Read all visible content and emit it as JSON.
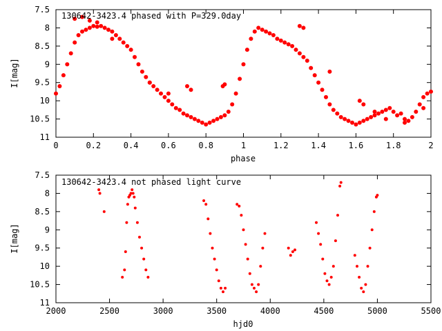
{
  "chart_data": [
    {
      "type": "scatter",
      "title": "130642-3423.4 phased with P=329.0day",
      "xlabel": "phase",
      "ylabel": "I[mag]",
      "xlim": [
        0,
        2
      ],
      "ylim": [
        7.5,
        11
      ],
      "y_inverted": true,
      "marker_color": "#ff0000",
      "x_ticks": [
        "0",
        "0.2",
        "0.4",
        "0.6",
        "0.8",
        "1",
        "1.2",
        "1.4",
        "1.6",
        "1.8",
        "2"
      ],
      "y_ticks": [
        "7.5",
        "8",
        "8.5",
        "9",
        "9.5",
        "10",
        "10.5",
        "11"
      ],
      "series": [
        {
          "x": [
            0.0,
            0.02,
            0.04,
            0.06,
            0.08,
            0.1,
            0.12,
            0.14,
            0.16,
            0.18,
            0.2,
            0.22,
            0.24,
            0.26,
            0.28,
            0.3,
            0.32,
            0.34,
            0.36,
            0.38,
            0.4,
            0.42,
            0.44,
            0.46,
            0.48,
            0.5,
            0.52,
            0.54,
            0.56,
            0.58,
            0.6,
            0.62,
            0.64,
            0.66,
            0.68,
            0.7,
            0.72,
            0.74,
            0.76,
            0.78,
            0.8,
            0.82,
            0.84,
            0.86,
            0.88,
            0.9,
            0.92,
            0.94,
            0.96,
            0.98,
            1.0,
            1.02,
            1.04,
            1.06,
            1.08,
            1.1,
            1.12,
            1.14,
            1.16,
            1.18,
            1.2,
            1.22,
            1.24,
            1.26,
            1.28,
            1.3,
            1.32,
            1.34,
            1.36,
            1.38,
            1.4,
            1.42,
            1.44,
            1.46,
            1.48,
            1.5,
            1.52,
            1.54,
            1.56,
            1.58,
            1.6,
            1.62,
            1.64,
            1.66,
            1.68,
            1.7,
            1.72,
            1.74,
            1.76,
            1.78,
            1.8,
            1.82,
            1.84,
            1.86,
            1.88,
            1.9,
            1.92,
            1.94,
            1.96,
            1.98,
            2.0,
            0.1,
            0.14,
            0.18,
            0.22,
            0.3,
            0.5,
            0.6,
            0.7,
            0.72,
            0.89,
            0.9,
            1.3,
            1.32,
            1.46,
            1.62,
            1.64,
            1.7,
            1.76,
            1.86,
            1.96
          ],
          "y": [
            9.8,
            9.6,
            9.3,
            9.0,
            8.7,
            8.4,
            8.2,
            8.1,
            8.05,
            8.0,
            7.95,
            7.97,
            7.95,
            8.0,
            8.05,
            8.1,
            8.2,
            8.3,
            8.4,
            8.5,
            8.6,
            8.8,
            9.0,
            9.2,
            9.35,
            9.5,
            9.6,
            9.7,
            9.8,
            9.9,
            10.0,
            10.1,
            10.2,
            10.25,
            10.35,
            10.4,
            10.45,
            10.5,
            10.55,
            10.6,
            10.65,
            10.6,
            10.55,
            10.5,
            10.45,
            10.4,
            10.3,
            10.1,
            9.8,
            9.4,
            9.0,
            8.6,
            8.3,
            8.1,
            8.0,
            8.05,
            8.1,
            8.15,
            8.2,
            8.3,
            8.35,
            8.4,
            8.45,
            8.5,
            8.6,
            8.7,
            8.8,
            8.9,
            9.1,
            9.3,
            9.5,
            9.7,
            9.9,
            10.1,
            10.25,
            10.35,
            10.45,
            10.5,
            10.55,
            10.6,
            10.65,
            10.6,
            10.55,
            10.5,
            10.45,
            10.4,
            10.35,
            10.3,
            10.25,
            10.2,
            10.3,
            10.4,
            10.35,
            10.5,
            10.55,
            10.45,
            10.3,
            10.1,
            9.9,
            9.8,
            9.75,
            7.75,
            7.7,
            7.8,
            7.85,
            8.3,
            9.5,
            9.8,
            9.6,
            9.7,
            9.6,
            9.55,
            7.95,
            8.0,
            9.2,
            10.0,
            10.1,
            10.3,
            10.5,
            10.6,
            10.2
          ]
        }
      ]
    },
    {
      "type": "scatter",
      "title": "130642-3423.4 not phased light curve",
      "xlabel": "hjd0",
      "ylabel": "I[mag]",
      "xlim": [
        2000,
        5500
      ],
      "ylim": [
        7.5,
        11
      ],
      "y_inverted": true,
      "marker_color": "#ff0000",
      "x_ticks": [
        "2000",
        "2500",
        "3000",
        "3500",
        "4000",
        "4500",
        "5000",
        "5500"
      ],
      "y_ticks": [
        "7.5",
        "8",
        "8.5",
        "9",
        "9.5",
        "10",
        "10.5",
        "11"
      ],
      "series": [
        {
          "x": [
            2400,
            2410,
            2450,
            2620,
            2640,
            2650,
            2660,
            2670,
            2680,
            2690,
            2700,
            2710,
            2720,
            2730,
            2740,
            2760,
            2780,
            2800,
            2820,
            2840,
            2860,
            3380,
            3400,
            3420,
            3440,
            3460,
            3480,
            3500,
            3520,
            3540,
            3560,
            3580,
            3690,
            3710,
            3730,
            3750,
            3770,
            3790,
            3810,
            3830,
            3850,
            3870,
            3890,
            3910,
            3930,
            3950,
            4170,
            4190,
            4210,
            4230,
            4430,
            4450,
            4470,
            4490,
            4510,
            4530,
            4550,
            4570,
            4590,
            4610,
            4630,
            4650,
            4660,
            4790,
            4810,
            4830,
            4850,
            4870,
            4890,
            4910,
            4930,
            4950,
            4970,
            4990,
            5000
          ],
          "y": [
            7.9,
            8.0,
            8.5,
            10.3,
            10.1,
            9.6,
            8.8,
            8.3,
            8.1,
            8.05,
            8.0,
            7.9,
            8.0,
            8.1,
            8.4,
            8.8,
            9.2,
            9.5,
            9.8,
            10.1,
            10.3,
            8.2,
            8.3,
            8.7,
            9.1,
            9.5,
            9.8,
            10.1,
            10.4,
            10.6,
            10.7,
            10.6,
            8.3,
            8.35,
            8.6,
            9.0,
            9.4,
            9.8,
            10.2,
            10.5,
            10.6,
            10.7,
            10.5,
            10.0,
            9.5,
            9.1,
            9.5,
            9.7,
            9.6,
            9.55,
            8.8,
            9.1,
            9.4,
            9.8,
            10.2,
            10.4,
            10.5,
            10.3,
            10.0,
            9.3,
            8.6,
            7.8,
            7.7,
            9.7,
            10.0,
            10.3,
            10.6,
            10.7,
            10.5,
            10.0,
            9.5,
            9.0,
            8.5,
            8.1,
            8.05
          ]
        }
      ]
    }
  ]
}
